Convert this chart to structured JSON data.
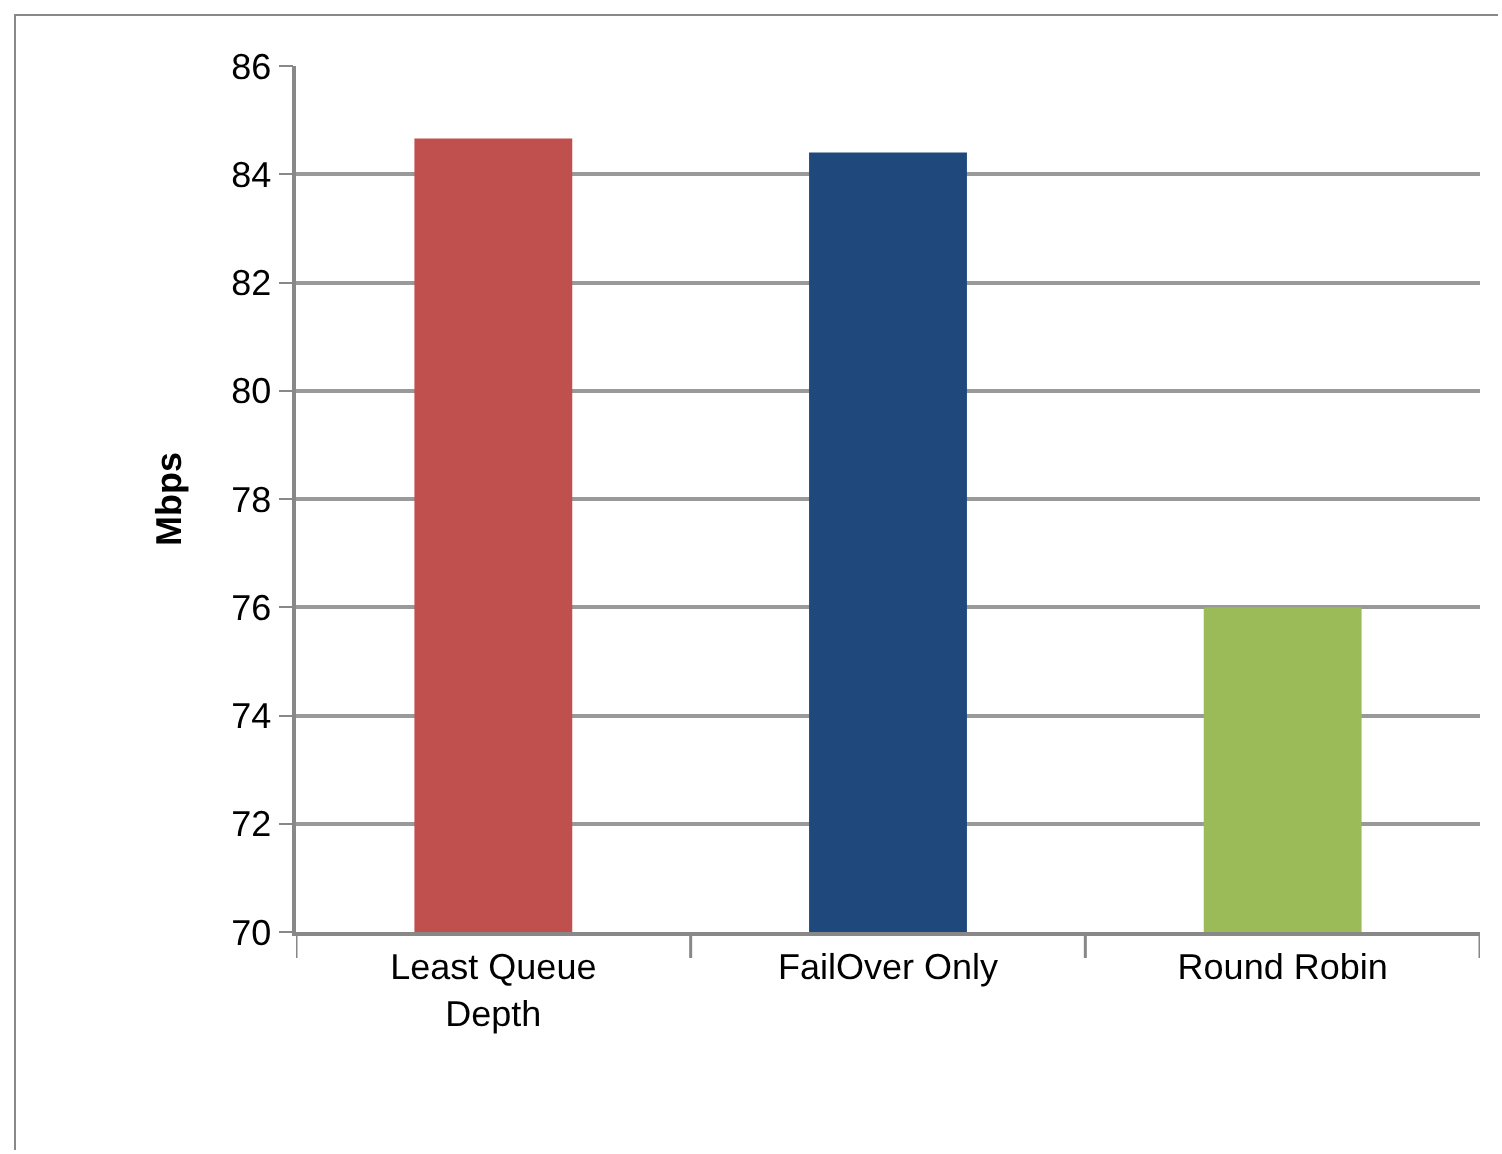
{
  "chart_data": {
    "type": "bar",
    "ylabel": "Mbps",
    "categories": [
      "Least Queue Depth",
      "FailOver Only",
      "Round Robin"
    ],
    "values": [
      84.66,
      84.4,
      76.0
    ],
    "colors": [
      "#c0504d",
      "#1f497d",
      "#9bbb59"
    ],
    "ylim": [
      70,
      86
    ],
    "yticks": [
      70,
      72,
      74,
      76,
      78,
      80,
      82,
      84,
      86
    ],
    "grid": "y"
  }
}
